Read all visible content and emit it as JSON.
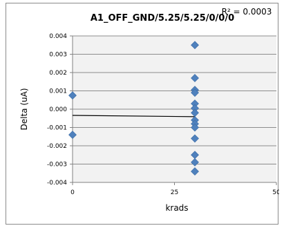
{
  "chart_data": {
    "type": "scatter",
    "title": "A1_OFF_GND/5.25/5.25/0/0/0",
    "annotation": "R² = 0.0003",
    "xlabel": "krads",
    "ylabel": "Delta (uA)",
    "xlim": [
      0,
      50
    ],
    "ylim": [
      -0.004,
      0.004
    ],
    "x_ticks": [
      0,
      25,
      50
    ],
    "y_ticks": [
      "0.004",
      "0.003",
      "0.002",
      "0.001",
      "0.000",
      "-0.001",
      "-0.002",
      "-0.003",
      "-0.004"
    ],
    "y_tick_values": [
      0.004,
      0.003,
      0.002,
      0.001,
      0.0,
      -0.001,
      -0.002,
      -0.003,
      -0.004
    ],
    "grid": "horizontal",
    "marker_color": "#4f81bd",
    "plot_background": "#f2f2f2",
    "points": [
      {
        "x": 0,
        "y": 0.00075
      },
      {
        "x": 0,
        "y": -0.0014
      },
      {
        "x": 30,
        "y": 0.0035
      },
      {
        "x": 30,
        "y": 0.0017
      },
      {
        "x": 30,
        "y": 0.00105
      },
      {
        "x": 30,
        "y": 0.0009
      },
      {
        "x": 30,
        "y": 0.0003
      },
      {
        "x": 30,
        "y": 5e-05
      },
      {
        "x": 30,
        "y": -0.0002
      },
      {
        "x": 30,
        "y": -0.0006
      },
      {
        "x": 30,
        "y": -0.0008
      },
      {
        "x": 30,
        "y": -0.001
      },
      {
        "x": 30,
        "y": -0.0016
      },
      {
        "x": 30,
        "y": -0.0025
      },
      {
        "x": 30,
        "y": -0.0029
      },
      {
        "x": 30,
        "y": -0.0034
      }
    ],
    "trendline": {
      "x": [
        0,
        30
      ],
      "y": [
        -0.00034,
        -0.00041
      ]
    }
  }
}
